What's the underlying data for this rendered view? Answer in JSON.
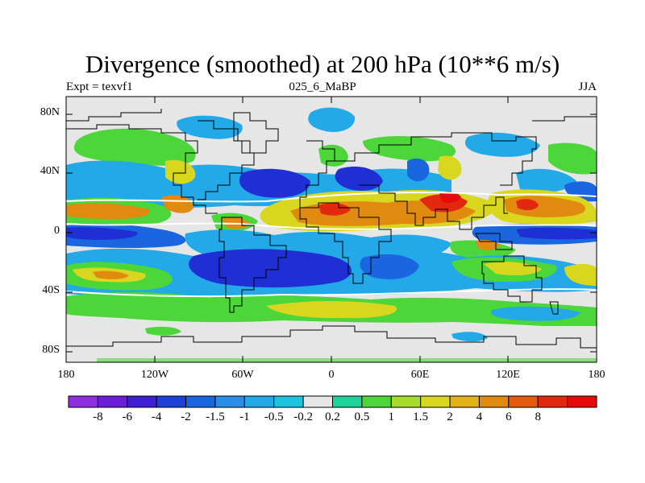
{
  "title": "Divergence (smoothed) at 200 hPa (10**6 m/s)",
  "left_string": "Expt = texvf1",
  "center_string": "025_6_MaBP",
  "right_string": "JJA",
  "lat_labels": [
    "80N",
    "40N",
    "0",
    "40S",
    "80S"
  ],
  "lon_labels": [
    "180",
    "120W",
    "60W",
    "0",
    "60E",
    "120E",
    "180"
  ],
  "colorbar": {
    "colors": [
      "#8e2fe0",
      "#6a1ed6",
      "#3f1fd4",
      "#1f3fd9",
      "#1a66e0",
      "#2a8de8",
      "#23a9e8",
      "#1cc4e0",
      "#e6e6e6",
      "#1ad49a",
      "#4cd63a",
      "#a6dc2e",
      "#d8d61e",
      "#e2b218",
      "#e08a10",
      "#e45a0e",
      "#e2280e",
      "#e60a0a"
    ],
    "labels": [
      "-8",
      "-6",
      "-4",
      "-2",
      "-1.5",
      "-1",
      "-0.5",
      "-0.2",
      "0.2",
      "0.5",
      "1",
      "1.5",
      "2",
      "4",
      "6",
      "8"
    ]
  },
  "map_colors": {
    "neutral": "#e6e6e6",
    "green": "#4cd63a",
    "yellow": "#d8d61e",
    "orange": "#e08a10",
    "red": "#e2280e",
    "lightblue": "#23a9e8",
    "blue": "#1a66e0",
    "darkblue": "#1f2fd4",
    "teal": "#1ad49a"
  }
}
